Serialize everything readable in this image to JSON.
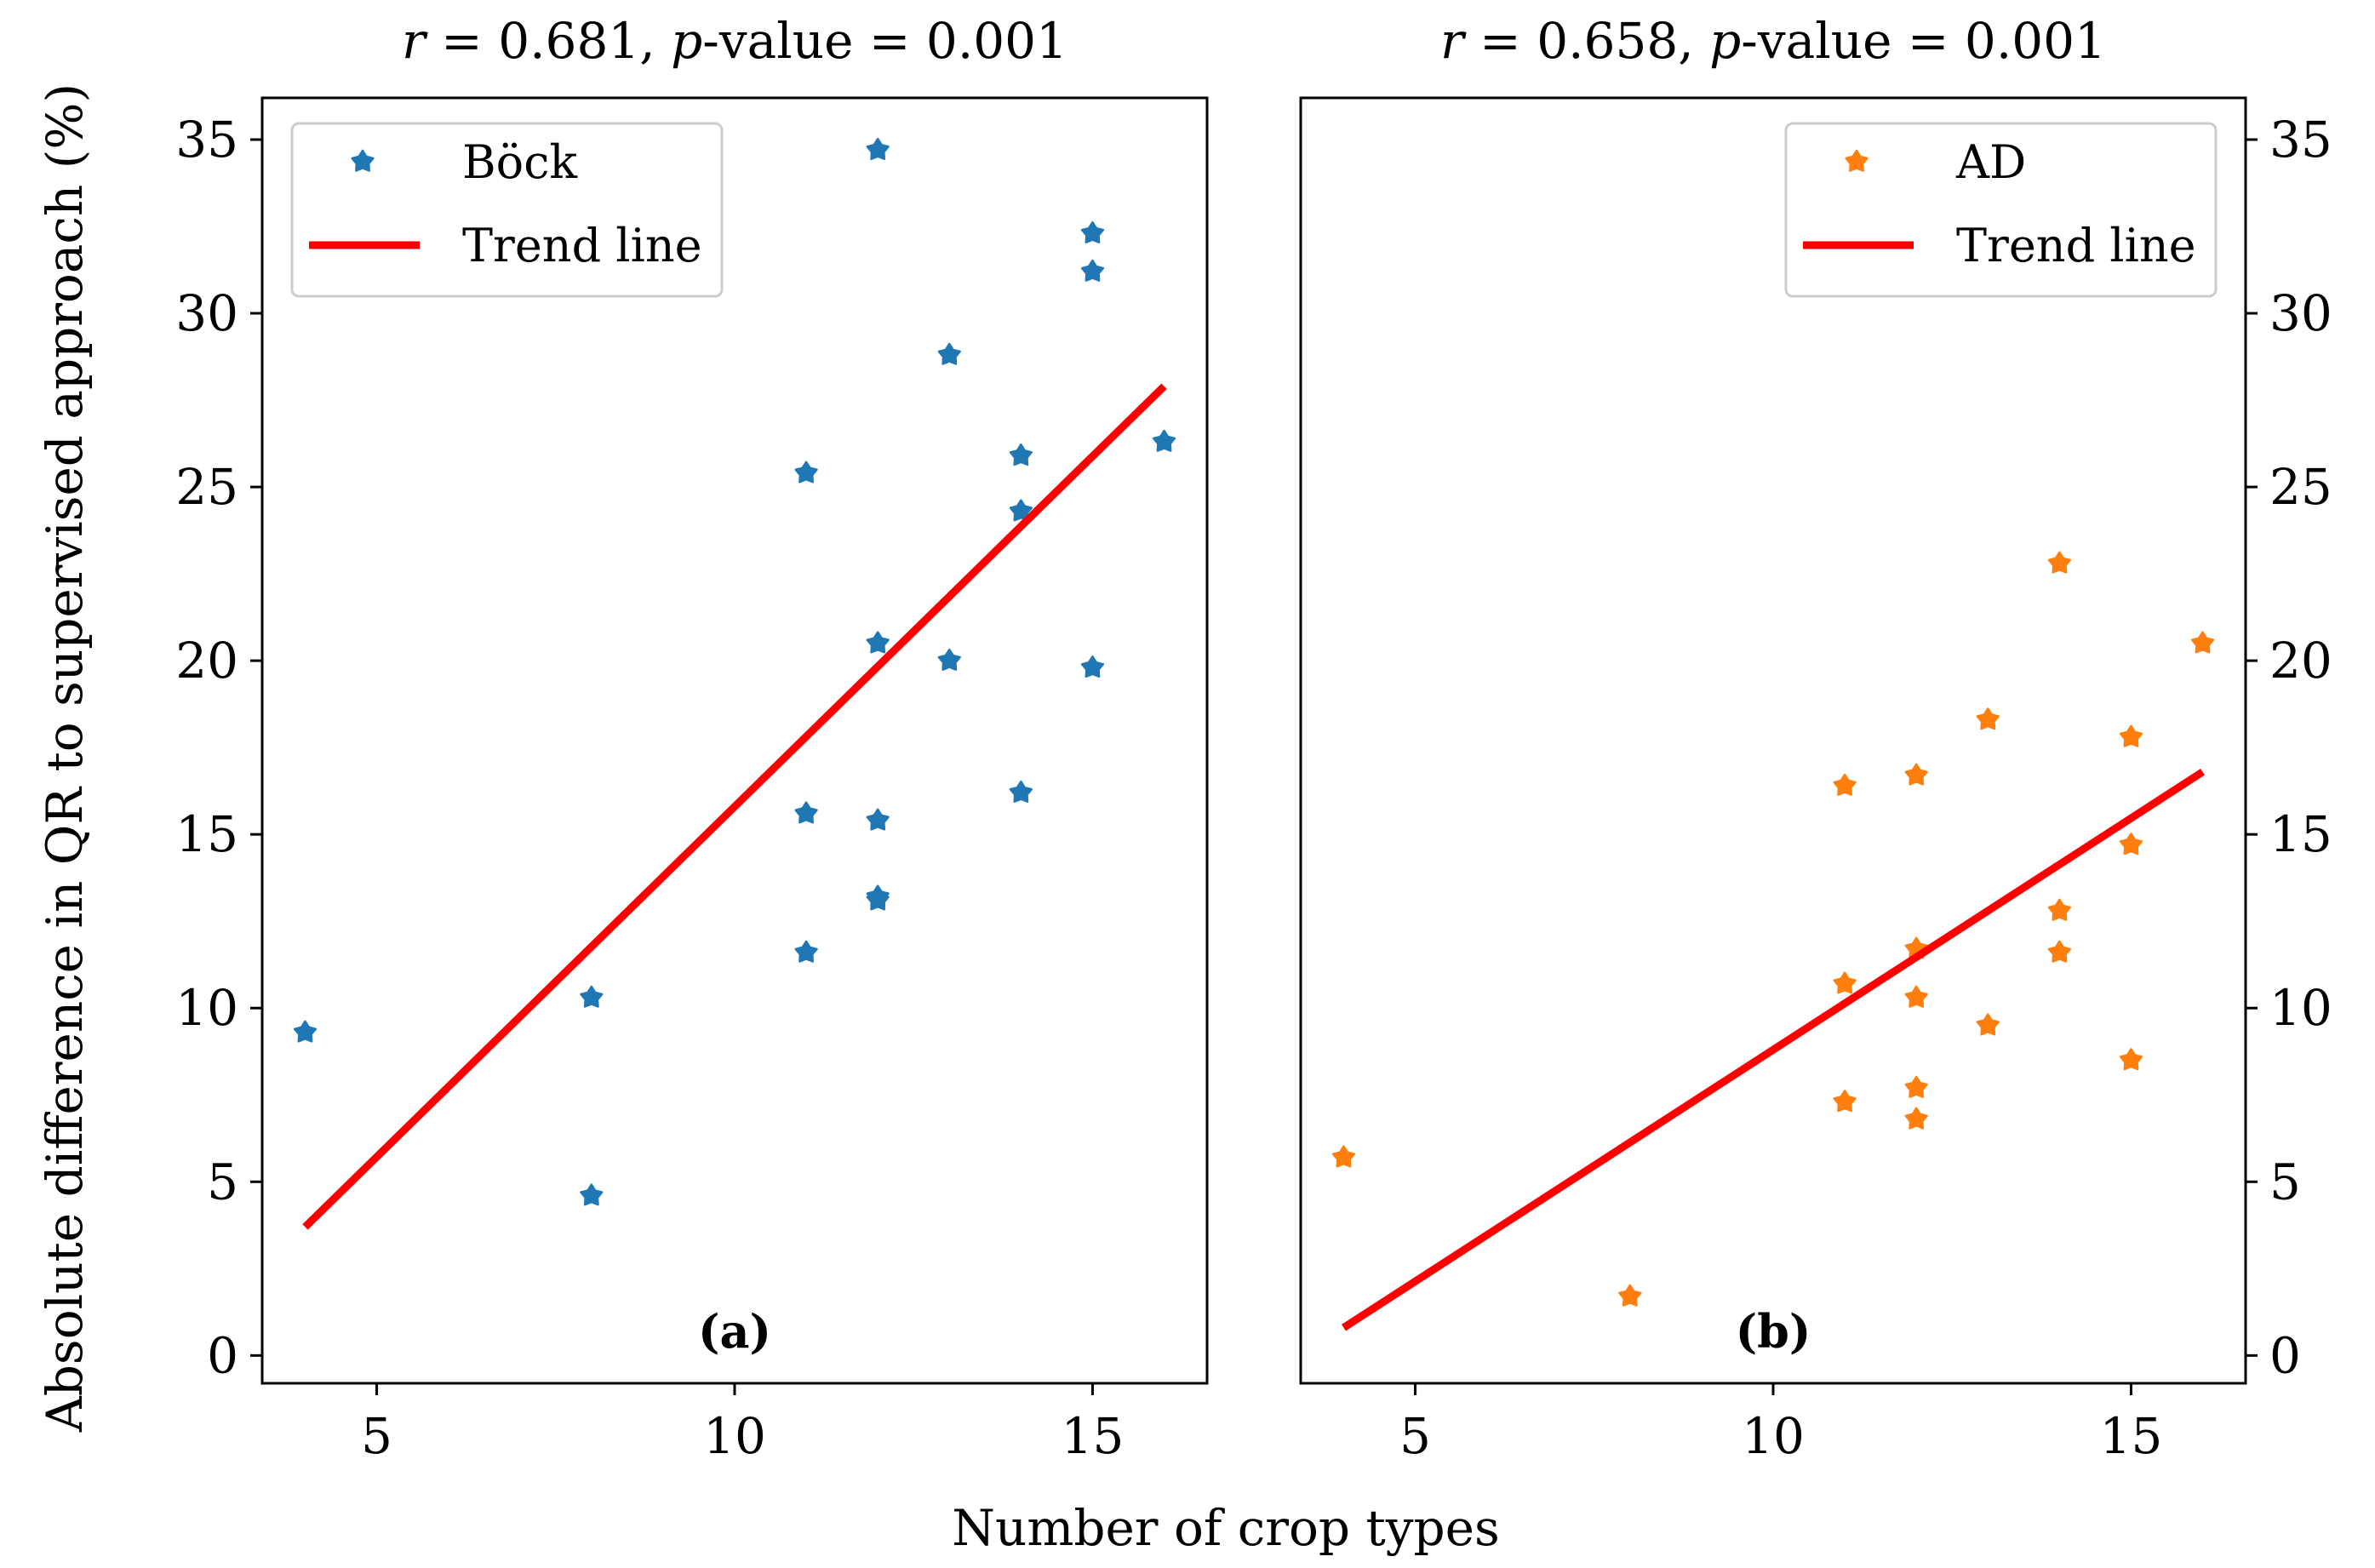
{
  "chart_data": [
    {
      "type": "scatter",
      "title": {
        "r_sym": "r",
        "r_text": " = 0.681, ",
        "p_sym": "p",
        "p_text": "-value = 0.001"
      },
      "panel_label": "(a)",
      "xlim": [
        3.4,
        16.6
      ],
      "ylim": [
        -0.8,
        36.2
      ],
      "xticks": [
        5,
        10,
        15
      ],
      "yticks": [
        0,
        5,
        10,
        15,
        20,
        25,
        30,
        35
      ],
      "ytick_side": "left",
      "series": [
        {
          "name": "Böck",
          "kind": "scatter",
          "color": "#1f77b4",
          "points": [
            [
              4,
              9.3
            ],
            [
              8,
              10.3
            ],
            [
              8,
              4.6
            ],
            [
              11,
              25.4
            ],
            [
              11,
              15.6
            ],
            [
              11,
              11.6
            ],
            [
              12,
              34.7
            ],
            [
              12,
              20.5
            ],
            [
              12,
              15.4
            ],
            [
              12,
              13.2
            ],
            [
              12,
              13.1
            ],
            [
              13,
              28.8
            ],
            [
              13,
              20.0
            ],
            [
              14,
              25.9
            ],
            [
              14,
              24.3
            ],
            [
              14,
              16.2
            ],
            [
              15,
              32.3
            ],
            [
              15,
              31.2
            ],
            [
              15,
              19.8
            ],
            [
              16,
              26.3
            ]
          ]
        },
        {
          "name": "Trend line",
          "kind": "line",
          "color": "#ff0000",
          "points": [
            [
              4,
              3.7
            ],
            [
              16,
              27.9
            ]
          ]
        }
      ]
    },
    {
      "type": "scatter",
      "title": {
        "r_sym": "r",
        "r_text": " = 0.658, ",
        "p_sym": "p",
        "p_text": "-value = 0.001"
      },
      "panel_label": "(b)",
      "xlim": [
        3.4,
        16.6
      ],
      "ylim": [
        -0.8,
        36.2
      ],
      "xticks": [
        5,
        10,
        15
      ],
      "yticks": [
        0,
        5,
        10,
        15,
        20,
        25,
        30,
        35
      ],
      "ytick_side": "right",
      "series": [
        {
          "name": "AD",
          "kind": "scatter",
          "color": "#ff7f0e",
          "points": [
            [
              4,
              5.7
            ],
            [
              8,
              1.7
            ],
            [
              11,
              16.4
            ],
            [
              11,
              10.7
            ],
            [
              11,
              7.3
            ],
            [
              12,
              16.7
            ],
            [
              12,
              11.7
            ],
            [
              12,
              10.3
            ],
            [
              12,
              7.7
            ],
            [
              12,
              6.8
            ],
            [
              13,
              18.3
            ],
            [
              13,
              9.5
            ],
            [
              14,
              22.8
            ],
            [
              14,
              12.8
            ],
            [
              14,
              11.6
            ],
            [
              15,
              17.8
            ],
            [
              15,
              14.7
            ],
            [
              15,
              8.5
            ],
            [
              16,
              20.5
            ]
          ]
        },
        {
          "name": "Trend line",
          "kind": "line",
          "color": "#ff0000",
          "points": [
            [
              4,
              0.8
            ],
            [
              16,
              16.8
            ]
          ]
        }
      ]
    }
  ],
  "shared": {
    "xlabel": "Number of crop types",
    "ylabel": "Absolute difference in QR to supervised approach (%)"
  }
}
